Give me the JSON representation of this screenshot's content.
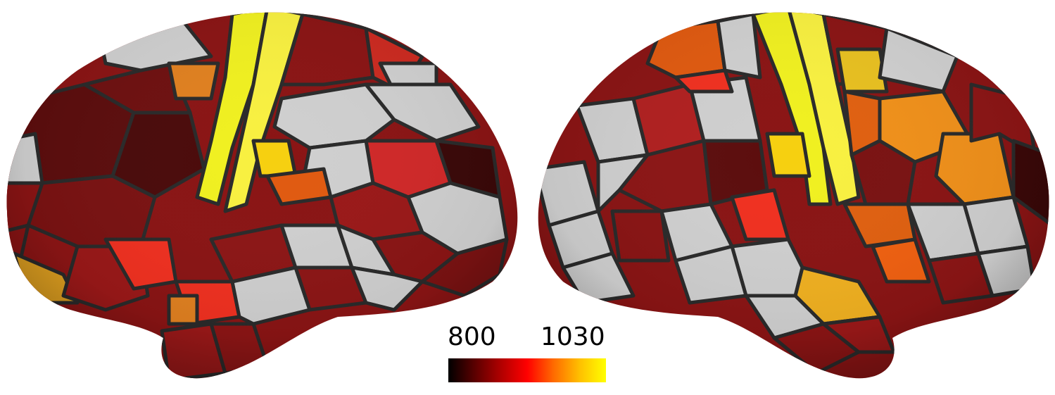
{
  "figure": {
    "description_type": "cortical parcellation surface map, two inflated hemispheres",
    "views": [
      "left-lateral",
      "right-lateral"
    ]
  },
  "colorbar": {
    "min_label": "800",
    "max_label": "1030",
    "min_value": 800,
    "max_value": 1030,
    "colormap": "hot",
    "stops": [
      "#000000",
      "#5a0000",
      "#b00000",
      "#ff0000",
      "#ff6a00",
      "#ffc000",
      "#ffff00"
    ]
  },
  "colors": {
    "unassigned": "#cfcfcf",
    "border": "#2a2a2a",
    "background": "#ffffff"
  }
}
